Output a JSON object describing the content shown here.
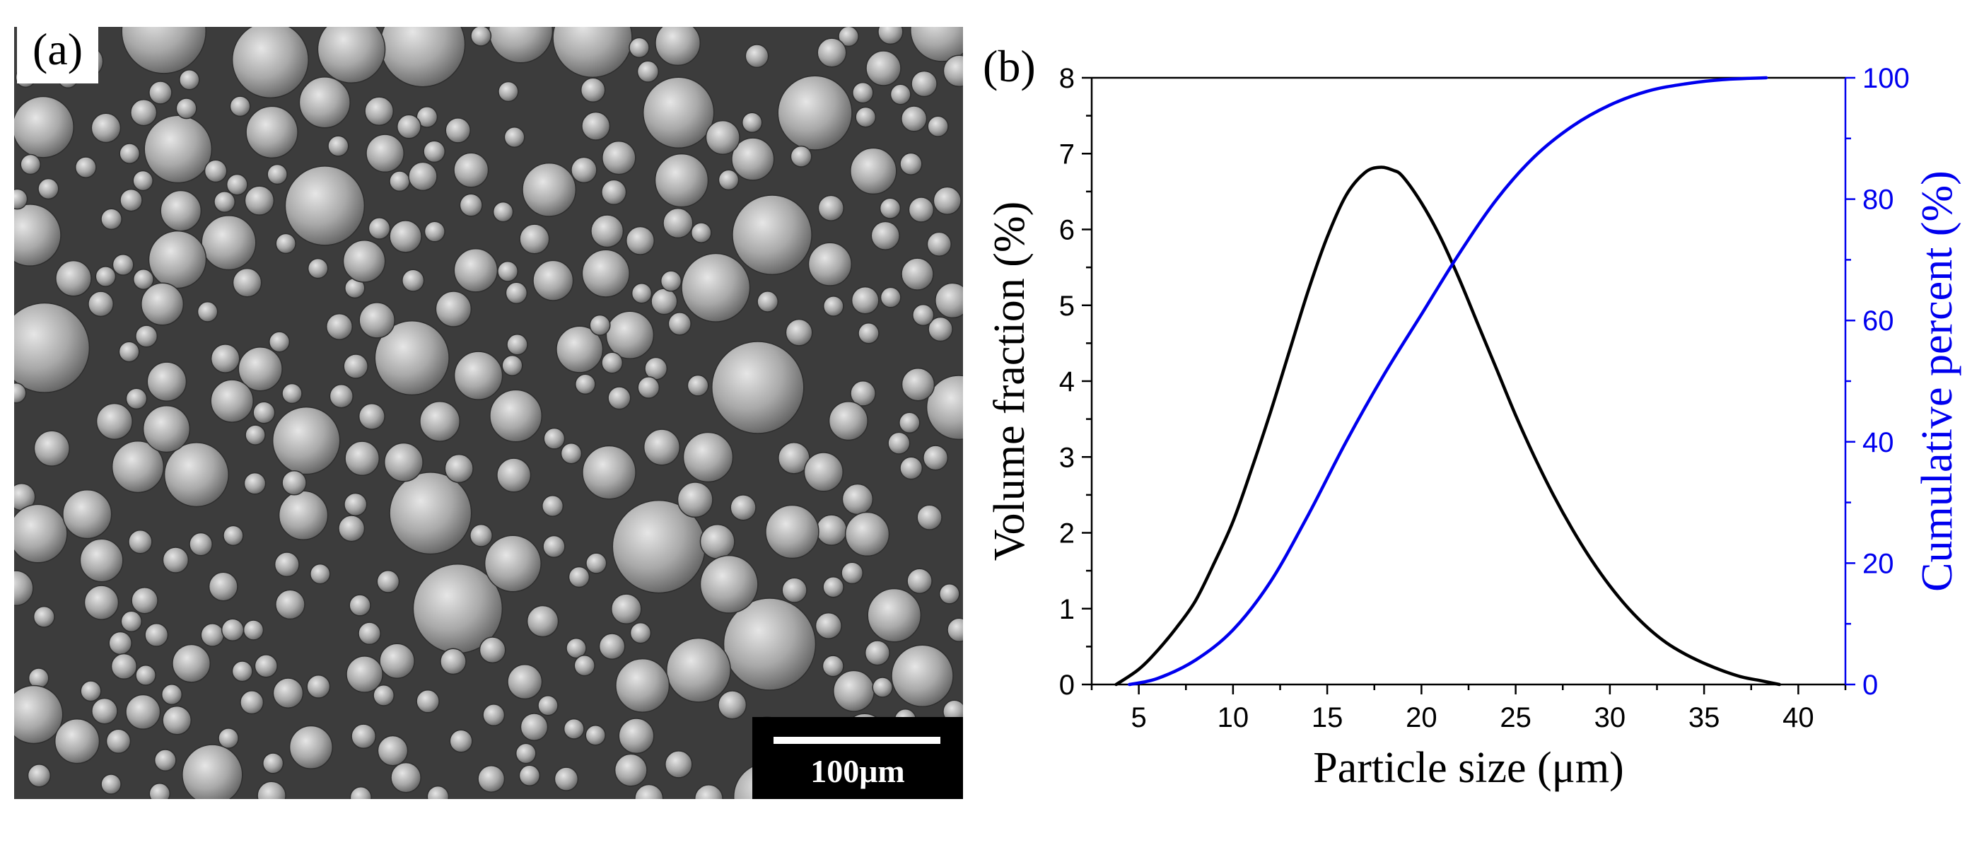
{
  "panel_a": {
    "label": "(a)",
    "scale_bar": "100μm"
  },
  "panel_b": {
    "label": "(b)"
  },
  "colors": {
    "volume": "#000000",
    "cumulative": "#0000ee",
    "sem_background": "#3c3c3c"
  },
  "chart_data": {
    "type": "line",
    "xlabel": "Particle size (μm)",
    "ylabel": "Volume fraction (%)",
    "y2label": "Cumulative percent (%)",
    "xlim": [
      2.5,
      42.5
    ],
    "ylim": [
      0,
      8
    ],
    "y2lim": [
      0,
      100
    ],
    "xticks": [
      5,
      10,
      15,
      20,
      25,
      30,
      35,
      40
    ],
    "yticks": [
      0,
      1,
      2,
      3,
      4,
      5,
      6,
      7,
      8
    ],
    "y2ticks": [
      0,
      20,
      40,
      60,
      80,
      100
    ],
    "series": [
      {
        "name": "Volume fraction",
        "axis": "left",
        "x": [
          3.8,
          5,
          6,
          7,
          8,
          9,
          10,
          11,
          12,
          13,
          14,
          15,
          16,
          17,
          17.8,
          18.5,
          19,
          20,
          21,
          22,
          23,
          24,
          25,
          26,
          27,
          28,
          29,
          30,
          31,
          32,
          33,
          34,
          35,
          36,
          37,
          38,
          39
        ],
        "values": [
          0,
          0.2,
          0.45,
          0.75,
          1.1,
          1.6,
          2.15,
          2.85,
          3.6,
          4.4,
          5.2,
          5.9,
          6.45,
          6.75,
          6.82,
          6.78,
          6.7,
          6.35,
          5.9,
          5.35,
          4.75,
          4.15,
          3.55,
          3.0,
          2.5,
          2.05,
          1.65,
          1.3,
          1.0,
          0.75,
          0.55,
          0.4,
          0.28,
          0.18,
          0.1,
          0.05,
          0
        ]
      },
      {
        "name": "Cumulative percent",
        "axis": "right",
        "x": [
          4.5,
          6,
          8,
          10,
          12,
          14,
          16,
          18,
          20,
          22,
          24,
          26,
          28,
          30,
          32,
          34,
          36,
          38.3
        ],
        "values": [
          0,
          1,
          4,
          9,
          17,
          28,
          40,
          51,
          61,
          71,
          80,
          87,
          92,
          95.5,
          97.8,
          99,
          99.7,
          100
        ]
      }
    ]
  }
}
